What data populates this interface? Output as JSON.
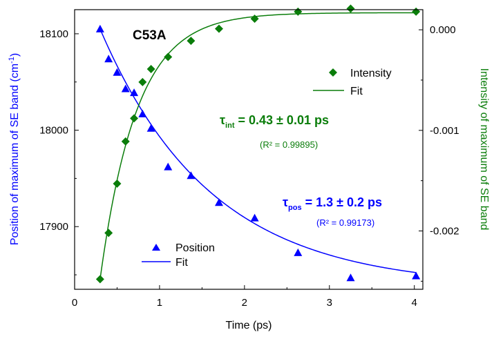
{
  "chart_data": {
    "type": "scatter",
    "title": "C53A",
    "xlabel": "Time (ps)",
    "ylabel_left": "Position of maximum of SE band (cm",
    "ylabel_left_sup": "-1",
    "ylabel_left_close": ")",
    "ylabel_right": "Intensity of maximum of SE band",
    "xlim": [
      0,
      4.1
    ],
    "ylim_left": [
      17835,
      18125
    ],
    "ylim_right": [
      -0.00258,
      0.0002
    ],
    "x_ticks": [
      0,
      1,
      2,
      3,
      4
    ],
    "x_tick_labels": [
      "0",
      "1",
      "2",
      "3",
      "4"
    ],
    "y_left_ticks": [
      17900,
      18000,
      18100
    ],
    "y_left_tick_labels": [
      "17900",
      "18000",
      "18100"
    ],
    "y_right_ticks": [
      -0.002,
      -0.001,
      0.0
    ],
    "y_right_tick_labels": [
      "-0.002",
      "-0.001",
      "0.000"
    ],
    "colors": {
      "position": "#0000ff",
      "intensity": "#0a7d0a"
    },
    "series": [
      {
        "name": "Position",
        "axis": "left",
        "marker": "triangle",
        "color": "#0000ff",
        "x": [
          0.3,
          0.4,
          0.5,
          0.6,
          0.7,
          0.8,
          0.9,
          1.1,
          1.37,
          1.7,
          2.12,
          2.63,
          3.25,
          4.02
        ],
        "y": [
          18105,
          18074,
          18060,
          18043,
          18039,
          18017,
          18002,
          17962,
          17953,
          17925,
          17909,
          17873,
          17847,
          17849
        ]
      },
      {
        "name": "Intensity",
        "axis": "right",
        "marker": "diamond",
        "color": "#0a7d0a",
        "x": [
          0.3,
          0.4,
          0.5,
          0.6,
          0.7,
          0.8,
          0.9,
          1.1,
          1.37,
          1.7,
          2.12,
          2.63,
          3.25,
          4.02
        ],
        "y": [
          -0.00248,
          -0.00202,
          -0.00153,
          -0.00111,
          -0.00088,
          -0.00052,
          -0.00039,
          -0.00027,
          -0.00011,
          1e-05,
          0.00011,
          0.00018,
          0.00021,
          0.00018
        ]
      }
    ],
    "fits": [
      {
        "name": "Fit",
        "for": "Position",
        "axis": "left",
        "model": "exp_decay",
        "tau": 1.3,
        "x0": 0.3,
        "y_start": 18105,
        "y_inf": 17837,
        "color": "#0000ff"
      },
      {
        "name": "Fit",
        "for": "Intensity",
        "axis": "right",
        "model": "exp_rise",
        "tau": 0.43,
        "x0": 0.3,
        "y_start": -0.00248,
        "y_inf": 0.00017,
        "color": "#0a7d0a"
      }
    ],
    "legend_intensity": {
      "marker_label": "Intensity",
      "fit_label": "Fit",
      "placement": "upper-right"
    },
    "legend_position": {
      "marker_label": "Position",
      "fit_label": "Fit",
      "placement": "lower-left"
    },
    "annotations": {
      "tau_int": {
        "symbol": "τ",
        "sub": "int",
        "text": " = 0.43 ± 0.01 ps",
        "r2": "(R² = 0.99895)"
      },
      "tau_pos": {
        "symbol": "τ",
        "sub": "pos",
        "text": " = 1.3 ± 0.2 ps",
        "r2": "(R² = 0.99173)"
      }
    }
  }
}
